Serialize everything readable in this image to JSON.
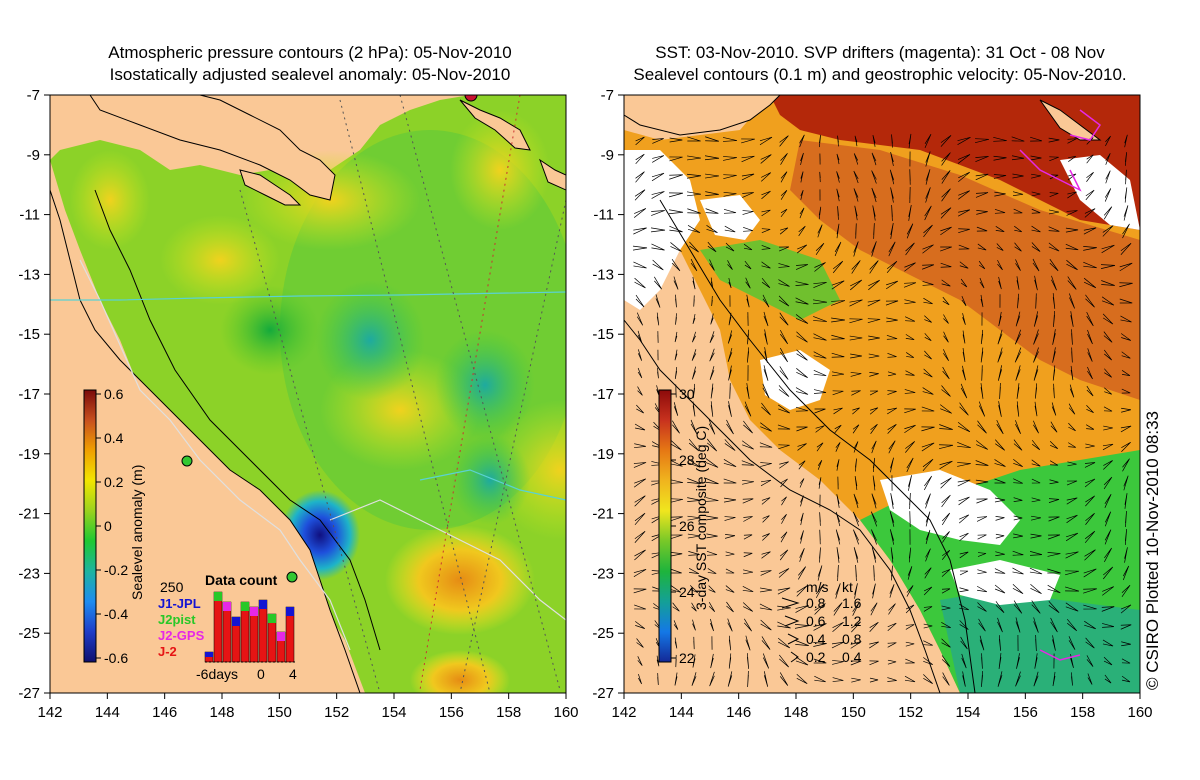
{
  "left_map": {
    "title_line1": "Atmospheric pressure contours (2 hPa): 05-Nov-2010",
    "title_line2": "Isostatically adjusted sealevel anomaly: 05-Nov-2010",
    "colorbar": {
      "label": "Sealevel anomaly (m)",
      "ticks": [
        "0.6",
        "0.4",
        "0.2",
        "0",
        "-0.2",
        "-0.4",
        "-0.6"
      ],
      "colors": [
        "#7a0a0a",
        "#c8501e",
        "#f0a000",
        "#f2e600",
        "#9ad21e",
        "#1ec832",
        "#1eb4a0",
        "#1e8cf0",
        "#1e3cc8",
        "#10106e"
      ]
    },
    "data_count": {
      "title": "Data count",
      "max_label": "250",
      "x_labels": [
        "-6days",
        "0",
        "4"
      ],
      "satellites": [
        {
          "name": "J1-JPL",
          "color": "#1414d2"
        },
        {
          "name": "J2pist",
          "color": "#28c828"
        },
        {
          "name": "J2-GPS",
          "color": "#e628e6"
        },
        {
          "name": "J-2",
          "color": "#e61414"
        }
      ]
    }
  },
  "right_map": {
    "title_line1": "SST: 03-Nov-2010. SVP drifters (magenta): 31 Oct - 08 Nov",
    "title_line2": "Sealevel contours (0.1 m) and geostrophic velocity: 05-Nov-2010.",
    "colorbar": {
      "label": "3-day SST composite (deg C)",
      "ticks": [
        "30",
        "28",
        "26",
        "24",
        "22"
      ],
      "colors": [
        "#8c0a0a",
        "#c8321e",
        "#e67814",
        "#f0b41e",
        "#f0e61e",
        "#78c828",
        "#1eb43c",
        "#14a096",
        "#1478e6",
        "#142896"
      ]
    },
    "velocity_key": {
      "header_ms": "m/s",
      "header_kt": "kt",
      "rows": [
        {
          "ms": "0.8",
          "kt": "1.6"
        },
        {
          "ms": "0.6",
          "kt": "1.2"
        },
        {
          "ms": "0.4",
          "kt": "0.8"
        },
        {
          "ms": "0.2",
          "kt": "0.4"
        }
      ]
    }
  },
  "axes": {
    "lat_labels": [
      "-7",
      "-9",
      "-11",
      "-13",
      "-15",
      "-17",
      "-19",
      "-21",
      "-23",
      "-25",
      "-27"
    ],
    "lon_labels": [
      "142",
      "144",
      "146",
      "148",
      "150",
      "152",
      "154",
      "156",
      "158",
      "160"
    ]
  },
  "credit": "© CSIRO Plotted 10-Nov-2010 08:33",
  "colors": {
    "land": "#fac896",
    "ocean_green": "#32c832",
    "white": "#ffffff"
  }
}
